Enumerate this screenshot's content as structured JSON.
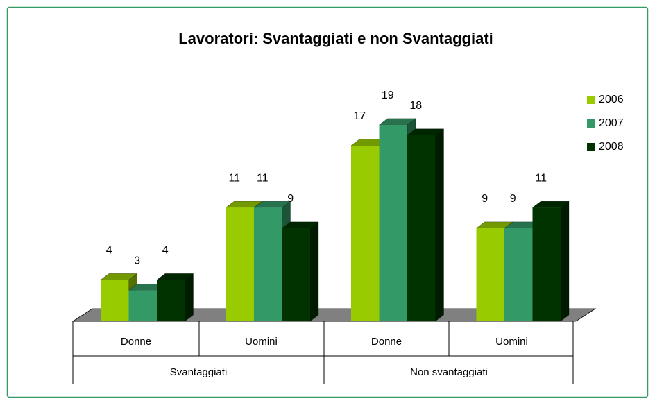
{
  "chart_data": {
    "type": "bar3d",
    "title": "Lavoratori: Svantaggiati e non Svantaggiati",
    "categories": [
      "Donne",
      "Uomini",
      "Donne",
      "Uomini"
    ],
    "groups": [
      "Svantaggiati",
      "Non svantaggiati"
    ],
    "series": [
      {
        "name": "2006",
        "color": "#99cc00",
        "values": [
          4,
          11,
          17,
          9
        ]
      },
      {
        "name": "2007",
        "color": "#339966",
        "values": [
          3,
          11,
          19,
          9
        ]
      },
      {
        "name": "2008",
        "color": "#003300",
        "values": [
          4,
          9,
          18,
          11
        ]
      }
    ],
    "legend": "right"
  }
}
